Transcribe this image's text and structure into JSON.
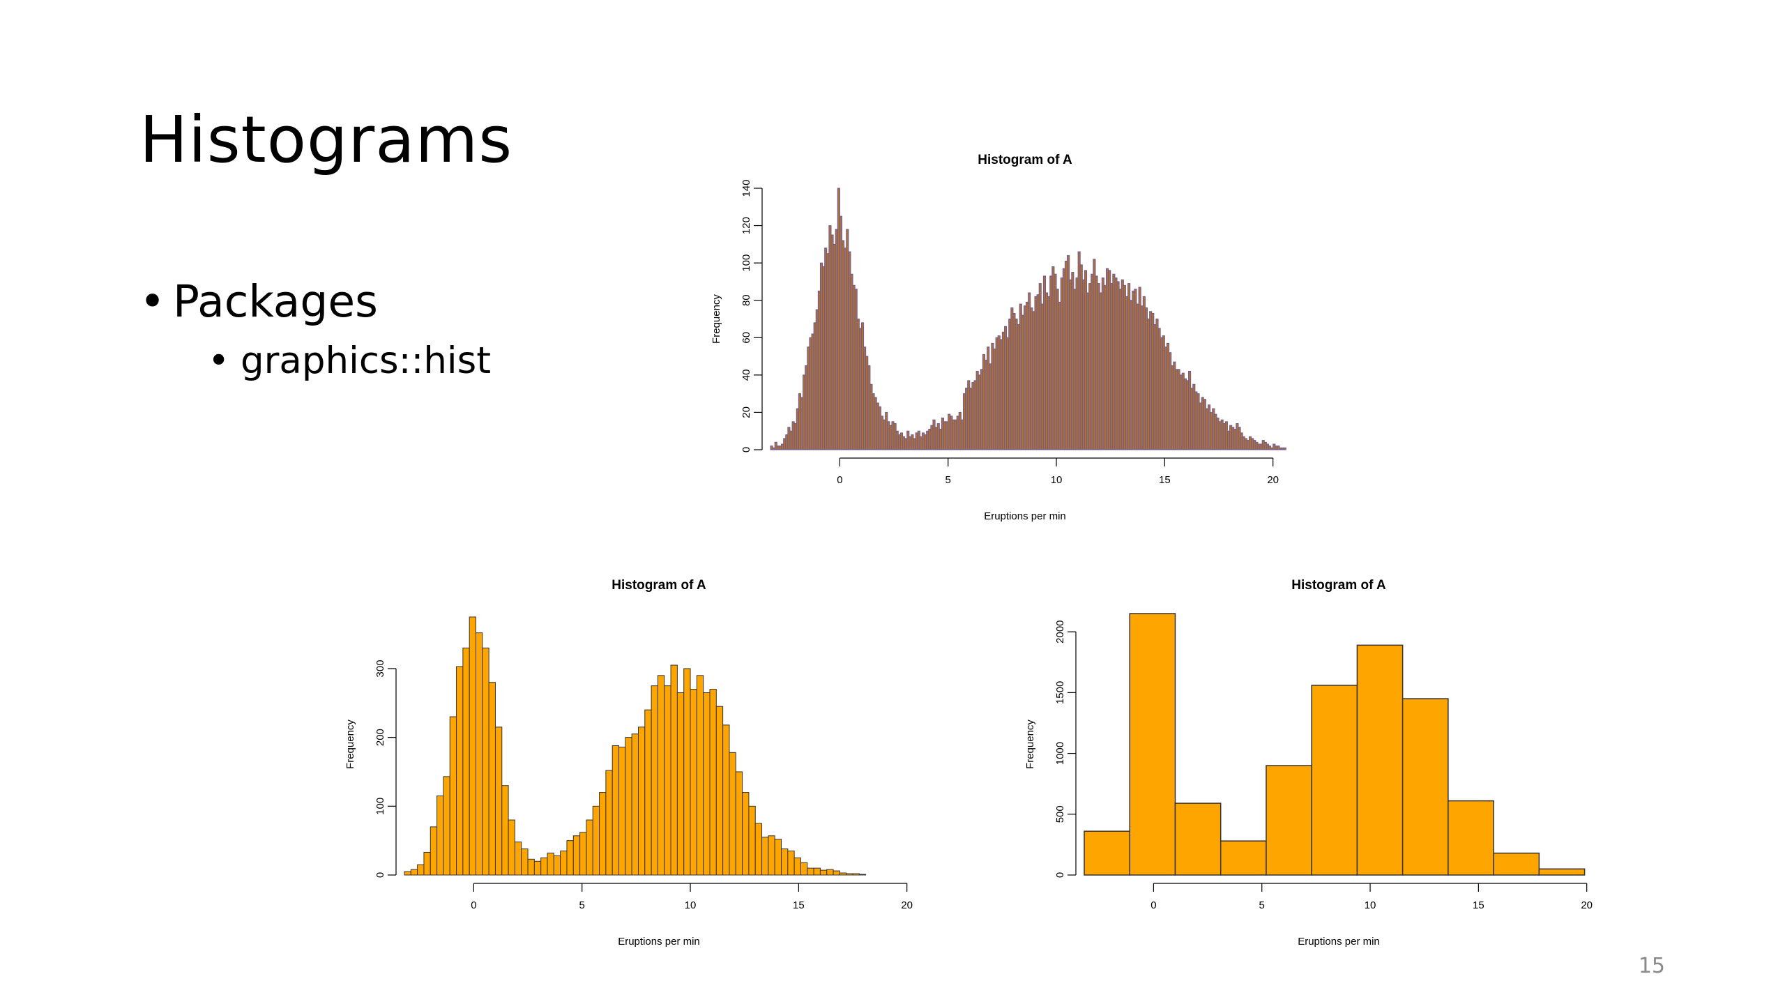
{
  "slide": {
    "title": "Histograms",
    "bullets": [
      {
        "text": "Packages",
        "level": 1
      },
      {
        "text": "graphics::hist",
        "level": 2
      }
    ],
    "page_number": "15"
  },
  "chart_data": [
    {
      "type": "bar",
      "title": "Histogram of A",
      "xlabel": "Eruptions per min",
      "ylabel": "Frequency",
      "xlim": [
        -3.2,
        20.3
      ],
      "ylim": [
        0,
        140
      ],
      "xticks": [
        0,
        5,
        10,
        15,
        20
      ],
      "yticks": [
        0,
        20,
        40,
        60,
        80,
        100,
        120,
        140
      ],
      "bar_color": "#b07030",
      "edge_color": "#6a5aa0",
      "bin_start": -3.2,
      "bin_width": 0.1,
      "values": [
        2,
        1,
        4,
        2,
        2,
        3,
        6,
        8,
        12,
        10,
        15,
        14,
        22,
        30,
        28,
        40,
        45,
        55,
        60,
        62,
        68,
        75,
        85,
        100,
        98,
        108,
        105,
        120,
        115,
        110,
        118,
        140,
        125,
        112,
        108,
        118,
        106,
        94,
        88,
        86,
        70,
        65,
        68,
        55,
        50,
        45,
        35,
        30,
        28,
        25,
        23,
        18,
        16,
        20,
        15,
        13,
        15,
        14,
        10,
        8,
        9,
        7,
        6,
        10,
        7,
        8,
        6,
        9,
        10,
        7,
        9,
        8,
        10,
        11,
        13,
        16,
        12,
        14,
        11,
        17,
        15,
        15,
        19,
        18,
        16,
        16,
        18,
        20,
        16,
        30,
        33,
        37,
        33,
        36,
        37,
        42,
        40,
        43,
        51,
        48,
        55,
        46,
        57,
        54,
        60,
        61,
        59,
        63,
        66,
        60,
        70,
        76,
        73,
        70,
        67,
        78,
        72,
        77,
        79,
        84,
        76,
        74,
        82,
        83,
        89,
        78,
        93,
        84,
        82,
        93,
        98,
        94,
        86,
        79,
        92,
        97,
        101,
        104,
        91,
        95,
        86,
        92,
        106,
        99,
        91,
        96,
        84,
        89,
        94,
        102,
        93,
        89,
        84,
        92,
        88,
        97,
        96,
        89,
        94,
        92,
        90,
        86,
        91,
        88,
        82,
        89,
        80,
        85,
        86,
        78,
        87,
        77,
        82,
        76,
        70,
        74,
        73,
        67,
        70,
        65,
        60,
        61,
        55,
        57,
        52,
        45,
        47,
        43,
        43,
        40,
        41,
        38,
        37,
        42,
        33,
        35,
        31,
        30,
        25,
        28,
        27,
        22,
        24,
        20,
        22,
        19,
        17,
        15,
        16,
        14,
        15,
        10,
        13,
        12,
        11,
        14,
        12,
        9,
        7,
        6,
        5,
        7,
        6,
        5,
        4,
        3,
        3,
        5,
        4,
        3,
        2,
        1,
        3,
        2,
        2,
        1,
        1,
        1
      ]
    },
    {
      "type": "bar",
      "title": "Histogram of A",
      "xlabel": "Eruptions per min",
      "ylabel": "Frequency",
      "xlim": [
        -3.2,
        20.3
      ],
      "ylim": [
        0,
        380
      ],
      "xticks": [
        0,
        5,
        10,
        15,
        20
      ],
      "yticks": [
        0,
        100,
        200,
        300
      ],
      "bar_color": "#ffa500",
      "edge_color": "#333333",
      "bin_start": -3.2,
      "bin_width": 0.3,
      "values": [
        5,
        8,
        15,
        33,
        70,
        115,
        143,
        230,
        303,
        330,
        375,
        352,
        330,
        280,
        215,
        130,
        80,
        48,
        38,
        23,
        20,
        25,
        32,
        28,
        35,
        50,
        57,
        62,
        80,
        100,
        120,
        152,
        188,
        186,
        200,
        205,
        215,
        240,
        275,
        290,
        275,
        305,
        265,
        300,
        270,
        290,
        265,
        270,
        245,
        218,
        178,
        150,
        120,
        100,
        75,
        55,
        57,
        52,
        38,
        35,
        25,
        18,
        10,
        10,
        7,
        8,
        6,
        3,
        2,
        2,
        1
      ]
    },
    {
      "type": "bar",
      "title": "Histogram of A",
      "xlabel": "Eruptions per min",
      "ylabel": "Frequency",
      "xlim": [
        -3.2,
        20.3
      ],
      "ylim": [
        0,
        2150
      ],
      "xticks": [
        0,
        5,
        10,
        15,
        20
      ],
      "yticks": [
        0,
        500,
        1000,
        1500,
        2000
      ],
      "bar_color": "#ffa500",
      "edge_color": "#333333",
      "bin_edges": [
        -3.2,
        -1.1,
        1.0,
        3.1,
        5.2,
        7.3,
        9.4,
        11.5,
        13.6,
        15.7,
        17.8,
        19.9
      ],
      "values": [
        360,
        2150,
        590,
        280,
        900,
        1560,
        1890,
        1450,
        610,
        180,
        50
      ]
    }
  ]
}
